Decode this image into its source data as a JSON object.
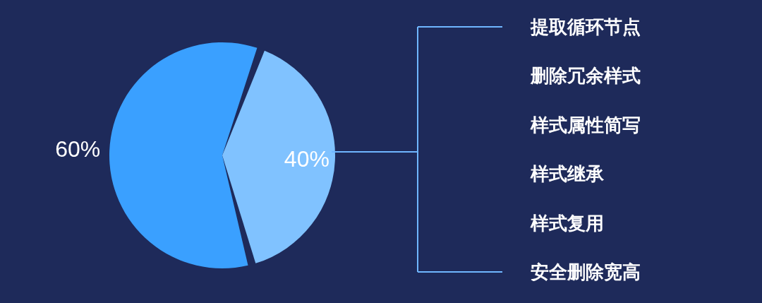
{
  "chart_data": {
    "type": "pie",
    "categories": [
      null,
      null
    ],
    "values": [
      60,
      40
    ],
    "colors": [
      "#3aa0ff",
      "#80c2ff"
    ],
    "value_labels": [
      "60%",
      "40%"
    ],
    "annotations": [
      "提取循环节点",
      "删除冗余样式",
      "样式属性简写",
      "样式继承",
      "样式复用",
      "安全删除宽高"
    ]
  }
}
